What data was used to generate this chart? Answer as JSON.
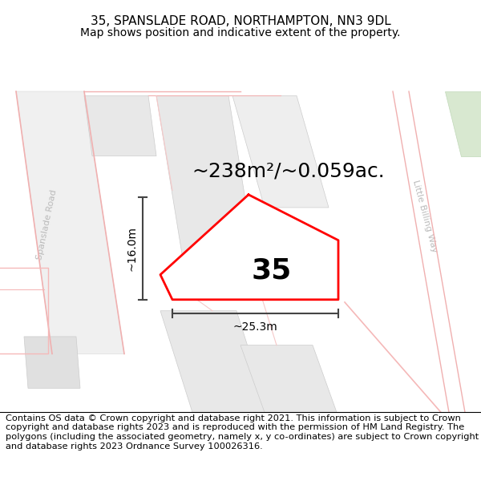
{
  "title_line1": "35, SPANSLADE ROAD, NORTHAMPTON, NN3 9DL",
  "title_line2": "Map shows position and indicative extent of the property.",
  "area_label": "~238m²/~0.059ac.",
  "number_label": "35",
  "width_label": "~25.3m",
  "height_label": "~16.0m",
  "footer_text": "Contains OS data © Crown copyright and database right 2021. This information is subject to Crown copyright and database rights 2023 and is reproduced with the permission of HM Land Registry. The polygons (including the associated geometry, namely x, y co-ordinates) are subject to Crown copyright and database rights 2023 Ordnance Survey 100026316.",
  "bg_color": "#ffffff",
  "property_edge": "#ff0000",
  "dim_color": "#444444",
  "road_line_color": "#f0b0b0",
  "road_text_color": "#aaaaaa",
  "block_fill": "#e8e8e8",
  "block_edge": "#cccccc",
  "title_fontsize": 11,
  "subtitle_fontsize": 10,
  "area_fontsize": 18,
  "number_fontsize": 26,
  "dim_fontsize": 10,
  "footer_fontsize": 8.2
}
